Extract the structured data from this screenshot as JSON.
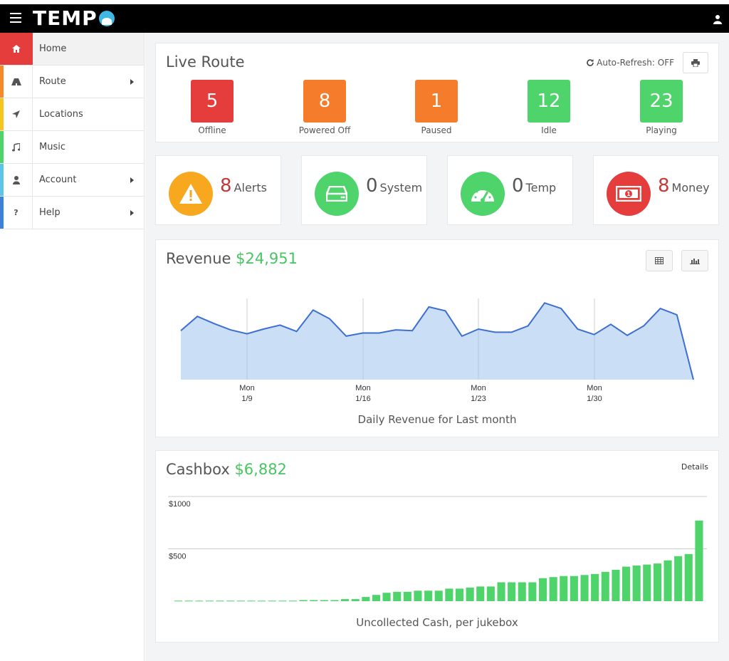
{
  "app": {
    "logo_text": "TEMP"
  },
  "sidebar": {
    "items": [
      {
        "label": "Home",
        "icon": "home-icon",
        "strip": "#e53c3c",
        "active": true,
        "caret": false
      },
      {
        "label": "Route",
        "icon": "road-icon",
        "strip": "#f48a2a",
        "active": false,
        "caret": true
      },
      {
        "label": "Locations",
        "icon": "location-arrow-icon",
        "strip": "#f7c41f",
        "active": false,
        "caret": false
      },
      {
        "label": "Music",
        "icon": "music-icon",
        "strip": "#4fd36b",
        "active": false,
        "caret": false
      },
      {
        "label": "Account",
        "icon": "user-icon",
        "strip": "#5bc4e8",
        "active": false,
        "caret": true
      },
      {
        "label": "Help",
        "icon": "question-icon",
        "strip": "#3b82d8",
        "active": false,
        "caret": true
      }
    ]
  },
  "live_route": {
    "title": "Live Route",
    "auto_refresh": "Auto-Refresh: OFF",
    "stats": [
      {
        "value": "5",
        "label": "Offline",
        "color": "#e53c3c"
      },
      {
        "value": "8",
        "label": "Powered Off",
        "color": "#f47c2a"
      },
      {
        "value": "1",
        "label": "Paused",
        "color": "#f47c2a"
      },
      {
        "value": "12",
        "label": "Idle",
        "color": "#4fd36b"
      },
      {
        "value": "23",
        "label": "Playing",
        "color": "#4fd36b"
      }
    ]
  },
  "alerts": [
    {
      "count": "8",
      "label": "Alerts",
      "icon": "warning-icon",
      "circle_color": "#f7a81f",
      "count_color": "#c23b3b"
    },
    {
      "count": "0",
      "label": "System",
      "icon": "hard-drive-icon",
      "circle_color": "#4fd36b",
      "count_color": "#555555"
    },
    {
      "count": "0",
      "label": "Temp",
      "icon": "gauge-icon",
      "circle_color": "#4fd36b",
      "count_color": "#555555"
    },
    {
      "count": "8",
      "label": "Money",
      "icon": "money-icon",
      "circle_color": "#e53c3c",
      "count_color": "#c23b3b"
    }
  ],
  "revenue": {
    "title": "Revenue",
    "amount": "$24,951",
    "caption": "Daily Revenue for Last month",
    "chart_data": {
      "type": "area",
      "x_tick_labels": [
        [
          "Mon",
          "1/9"
        ],
        [
          "Mon",
          "1/16"
        ],
        [
          "Mon",
          "1/23"
        ],
        [
          "Mon",
          "1/30"
        ]
      ],
      "values": [
        62,
        80,
        71,
        63,
        58,
        64,
        69,
        61,
        88,
        77,
        55,
        59,
        59,
        63,
        62,
        92,
        87,
        55,
        64,
        60,
        60,
        68,
        97,
        90,
        64,
        57,
        70,
        56,
        68,
        90,
        82,
        0
      ],
      "ylim": [
        0,
        100
      ],
      "grid": "vertical lines at ticks",
      "color": "#9ec3ef"
    }
  },
  "cashbox": {
    "title": "Cashbox",
    "amount": "$6,882",
    "details": "Details",
    "caption": "Uncollected Cash, per jukebox",
    "chart_data": {
      "type": "bar",
      "y_tick_labels": [
        "$1000",
        "$500"
      ],
      "ylim": [
        0,
        1000
      ],
      "values": [
        5,
        5,
        5,
        5,
        5,
        5,
        5,
        5,
        5,
        5,
        5,
        5,
        10,
        10,
        10,
        10,
        20,
        20,
        40,
        60,
        80,
        90,
        90,
        100,
        100,
        100,
        120,
        120,
        130,
        140,
        140,
        180,
        180,
        180,
        180,
        220,
        230,
        240,
        240,
        250,
        260,
        280,
        300,
        330,
        340,
        350,
        360,
        390,
        430,
        450,
        770
      ],
      "color": "#4fd36b"
    }
  }
}
